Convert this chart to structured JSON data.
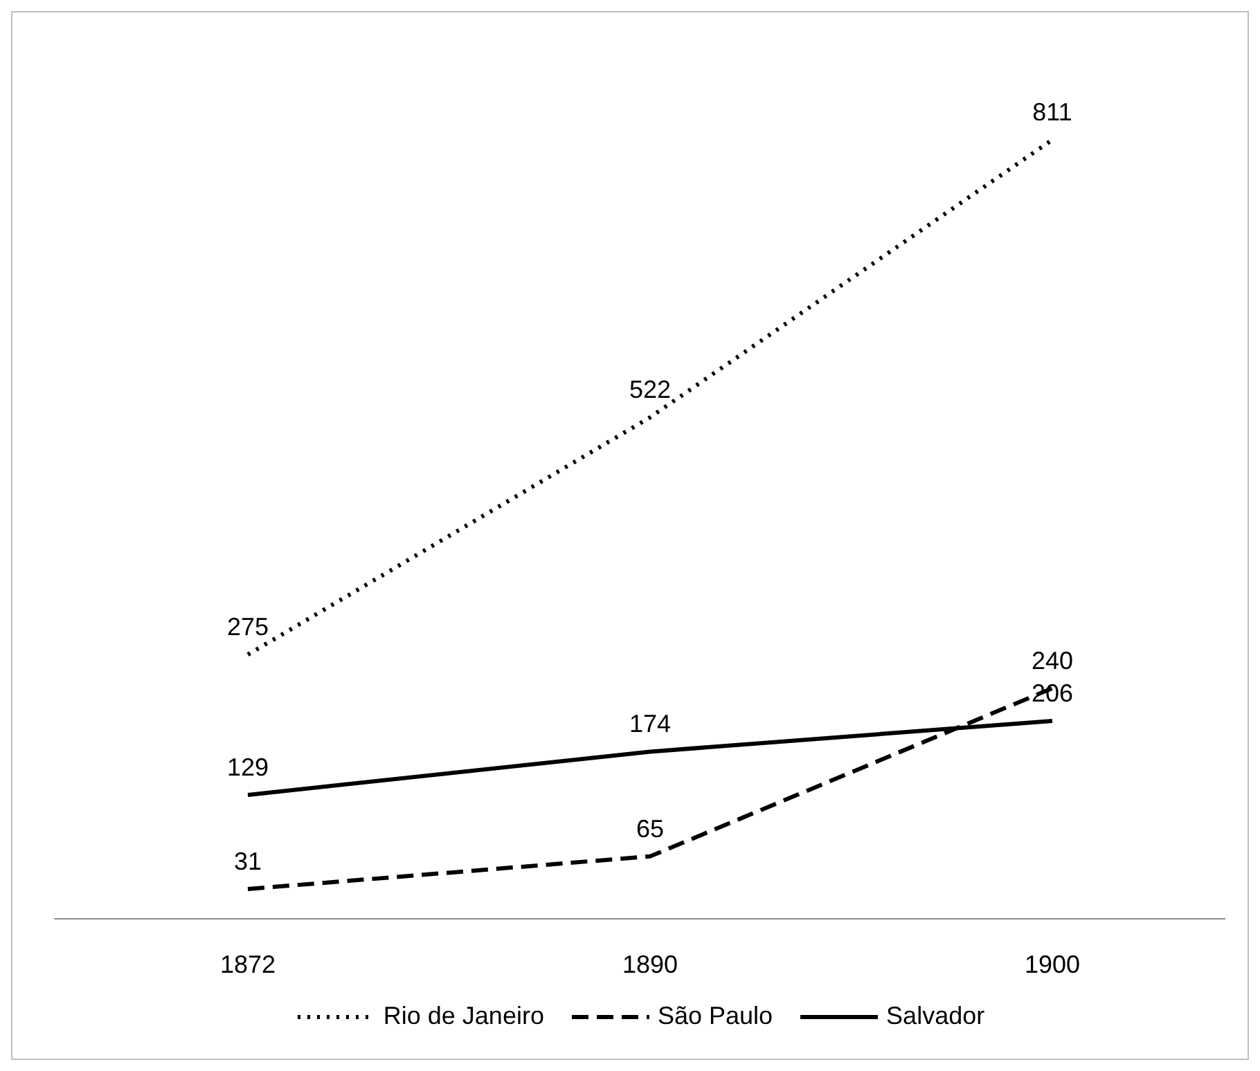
{
  "chart_data": {
    "type": "line",
    "categories": [
      "1872",
      "1890",
      "1900"
    ],
    "series": [
      {
        "name": "Rio de Janeiro",
        "color": "#000000",
        "line_style": "dotted",
        "values": [
          275,
          522,
          811
        ]
      },
      {
        "name": "São Paulo",
        "color": "#000000",
        "line_style": "dashed",
        "values": [
          31,
          65,
          240
        ]
      },
      {
        "name": "Salvador",
        "color": "#000000",
        "line_style": "solid",
        "values": [
          129,
          174,
          206
        ]
      }
    ],
    "data_labels": true,
    "grid": false,
    "legend": "bottom",
    "marker": "none"
  }
}
